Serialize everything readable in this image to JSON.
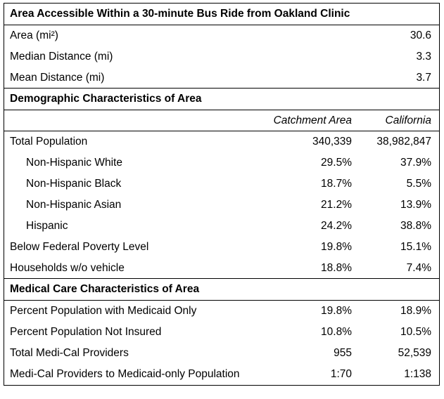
{
  "area_section": {
    "title": "Area Accessible Within a 30-minute Bus Ride from Oakland Clinic",
    "rows": [
      {
        "label": "Area (mi²)",
        "value": "30.6"
      },
      {
        "label": "Median Distance (mi)",
        "value": "3.3"
      },
      {
        "label": "Mean Distance (mi)",
        "value": "3.7"
      }
    ]
  },
  "demographic_section": {
    "title": "Demographic Characteristics of Area",
    "col_catchment": "Catchment Area",
    "col_california": "California",
    "rows": [
      {
        "label": "Total Population",
        "catchment": "340,339",
        "california": "38,982,847"
      },
      {
        "label": "Non-Hispanic White",
        "catchment": "29.5%",
        "california": "37.9%"
      },
      {
        "label": "Non-Hispanic Black",
        "catchment": "18.7%",
        "california": "5.5%"
      },
      {
        "label": "Non-Hispanic Asian",
        "catchment": "21.2%",
        "california": "13.9%"
      },
      {
        "label": "Hispanic",
        "catchment": "24.2%",
        "california": "38.8%"
      },
      {
        "label": "Below Federal Poverty Level",
        "catchment": "19.8%",
        "california": "15.1%"
      },
      {
        "label": "Households w/o vehicle",
        "catchment": "18.8%",
        "california": "7.4%"
      }
    ]
  },
  "medical_section": {
    "title": "Medical Care Characteristics of Area",
    "rows": [
      {
        "label": "Percent Population with Medicaid Only",
        "catchment": "19.8%",
        "california": "18.9%"
      },
      {
        "label": "Percent Population Not Insured",
        "catchment": "10.8%",
        "california": "10.5%"
      },
      {
        "label": "Total Medi-Cal Providers",
        "catchment": "955",
        "california": "52,539"
      },
      {
        "label": "Medi-Cal Providers to Medicaid-only Population",
        "catchment": "1:70",
        "california": "1:138"
      }
    ]
  }
}
